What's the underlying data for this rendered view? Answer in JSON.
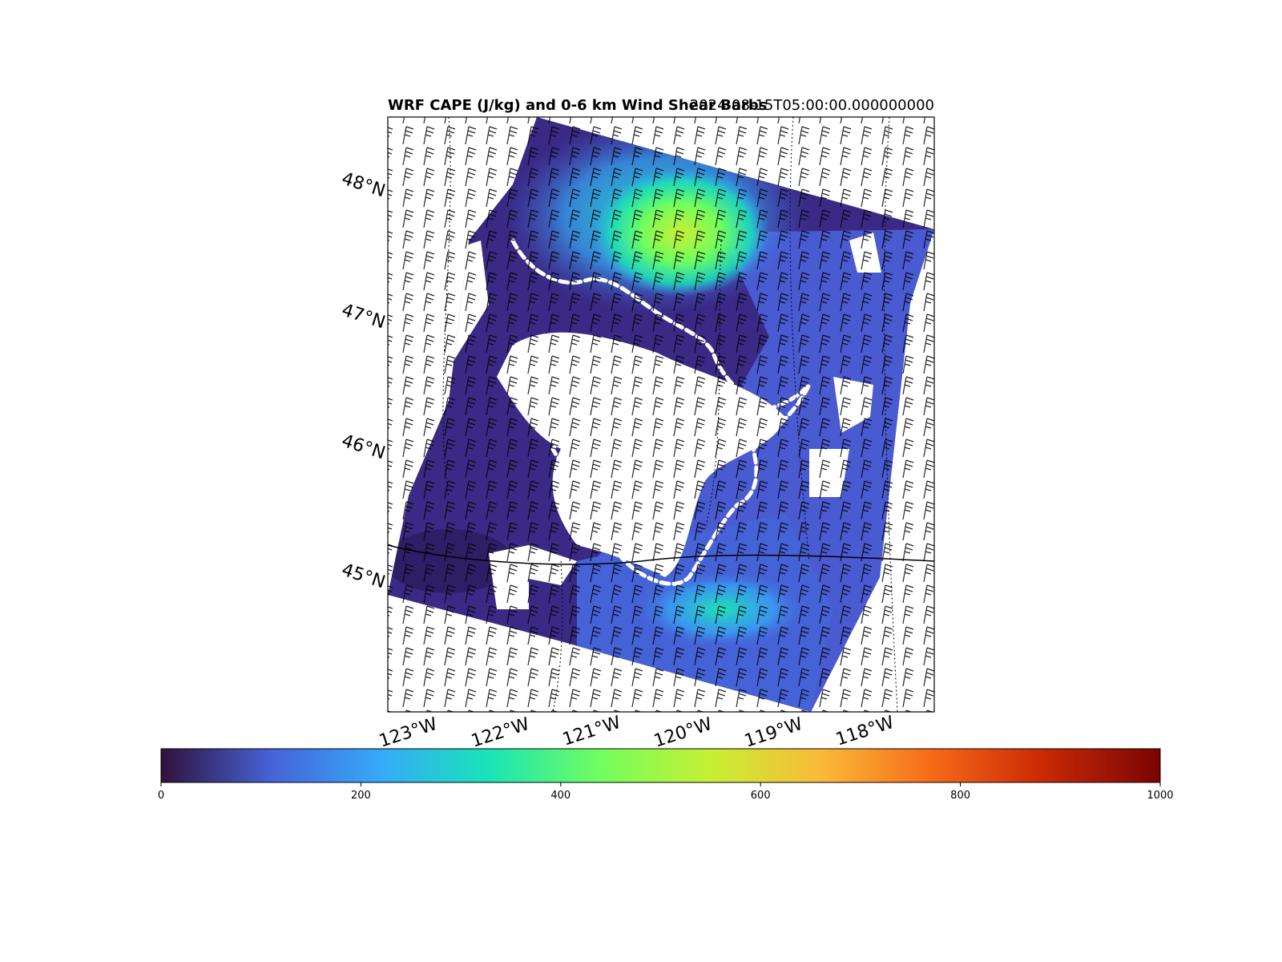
{
  "figure": {
    "title_left": "WRF CAPE (J/kg) and 0-6 km Wind Shear Barbs",
    "title_right": "2024-08-15T05:00:00.000000000"
  },
  "map": {
    "lat_labels": [
      "48°N",
      "47°N",
      "46°N",
      "45°N"
    ],
    "lon_labels": [
      "123°W",
      "122°W",
      "121°W",
      "120°W",
      "119°W",
      "118°W"
    ],
    "field": "CAPE",
    "overlay": "0-6 km wind shear barbs",
    "contour_color": "#ffffff"
  },
  "colorbar": {
    "colormap": "turbo",
    "min": 0,
    "max": 1000,
    "ticks": [
      0,
      200,
      400,
      600,
      800,
      1000
    ],
    "tick_labels": [
      "0",
      "200",
      "400",
      "600",
      "800",
      "1000"
    ],
    "colors": [
      "#30123b",
      "#4662d7",
      "#36aaf9",
      "#1ae4b6",
      "#72fe5e",
      "#c7ef34",
      "#faba39",
      "#f66b19",
      "#cb2a04",
      "#7a0403"
    ]
  }
}
